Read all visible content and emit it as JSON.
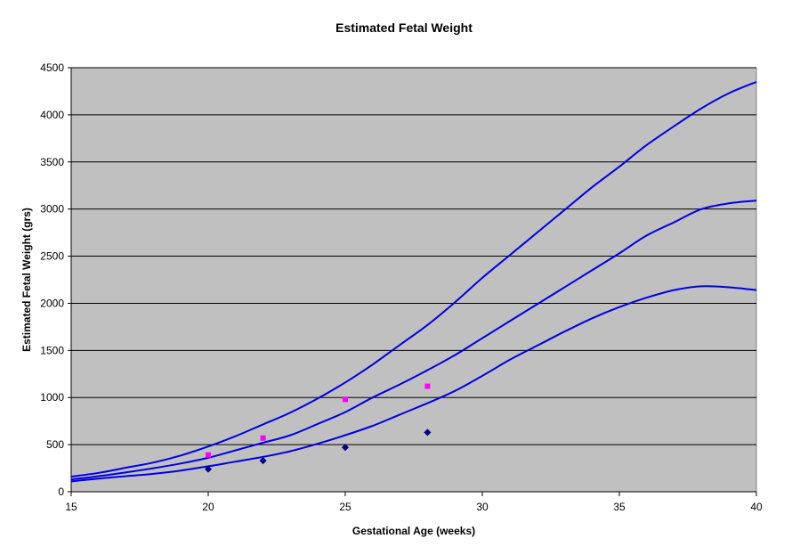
{
  "chart_data": {
    "type": "line",
    "title": "Estimated Fetal Weight",
    "xlabel": "Gestational Age (weeks)",
    "ylabel": "Estimated Fetal Weight (grs)",
    "xlim": [
      15,
      40
    ],
    "ylim": [
      0,
      4500
    ],
    "xticks": [
      15,
      20,
      25,
      30,
      35,
      40
    ],
    "yticks": [
      0,
      500,
      1000,
      1500,
      2000,
      2500,
      3000,
      3500,
      4000,
      4500
    ],
    "grid": "horizontal",
    "legend": "none",
    "colors": {
      "plot_background": "#C0C0C0",
      "curve": "#0000E0",
      "series_diamond": "#000080",
      "series_square": "#FF00FF",
      "gridline": "#000000"
    },
    "series": [
      {
        "kind": "line",
        "x": [
          15,
          16,
          17,
          18,
          19,
          20,
          21,
          22,
          23,
          24,
          25,
          26,
          27,
          28,
          29,
          30,
          31,
          32,
          33,
          34,
          35,
          36,
          37,
          38,
          39,
          40
        ],
        "values": [
          160,
          200,
          255,
          310,
          385,
          480,
          590,
          715,
          840,
          990,
          1160,
          1350,
          1560,
          1770,
          2010,
          2270,
          2510,
          2750,
          2990,
          3230,
          3450,
          3680,
          3880,
          4070,
          4230,
          4350
        ]
      },
      {
        "kind": "line",
        "x": [
          15,
          16,
          17,
          18,
          19,
          20,
          21,
          22,
          23,
          24,
          25,
          26,
          27,
          28,
          29,
          30,
          31,
          32,
          33,
          34,
          35,
          36,
          37,
          38,
          39,
          40
        ],
        "values": [
          130,
          165,
          205,
          250,
          300,
          360,
          440,
          520,
          600,
          720,
          845,
          1000,
          1140,
          1290,
          1450,
          1630,
          1810,
          1990,
          2170,
          2350,
          2530,
          2720,
          2860,
          3000,
          3060,
          3090
        ]
      },
      {
        "kind": "line",
        "x": [
          15,
          16,
          17,
          18,
          19,
          20,
          21,
          22,
          23,
          24,
          25,
          26,
          27,
          28,
          29,
          30,
          31,
          32,
          33,
          34,
          35,
          36,
          37,
          38,
          39,
          40
        ],
        "values": [
          110,
          140,
          165,
          190,
          225,
          270,
          320,
          370,
          430,
          510,
          600,
          700,
          820,
          940,
          1070,
          1230,
          1400,
          1550,
          1700,
          1840,
          1960,
          2060,
          2140,
          2180,
          2170,
          2140
        ]
      },
      {
        "kind": "scatter",
        "marker": "square",
        "x": [
          20,
          22,
          25,
          28
        ],
        "values": [
          390,
          570,
          980,
          1120
        ]
      },
      {
        "kind": "scatter",
        "marker": "diamond",
        "x": [
          20,
          22,
          25,
          28
        ],
        "values": [
          240,
          330,
          470,
          630
        ]
      }
    ]
  }
}
